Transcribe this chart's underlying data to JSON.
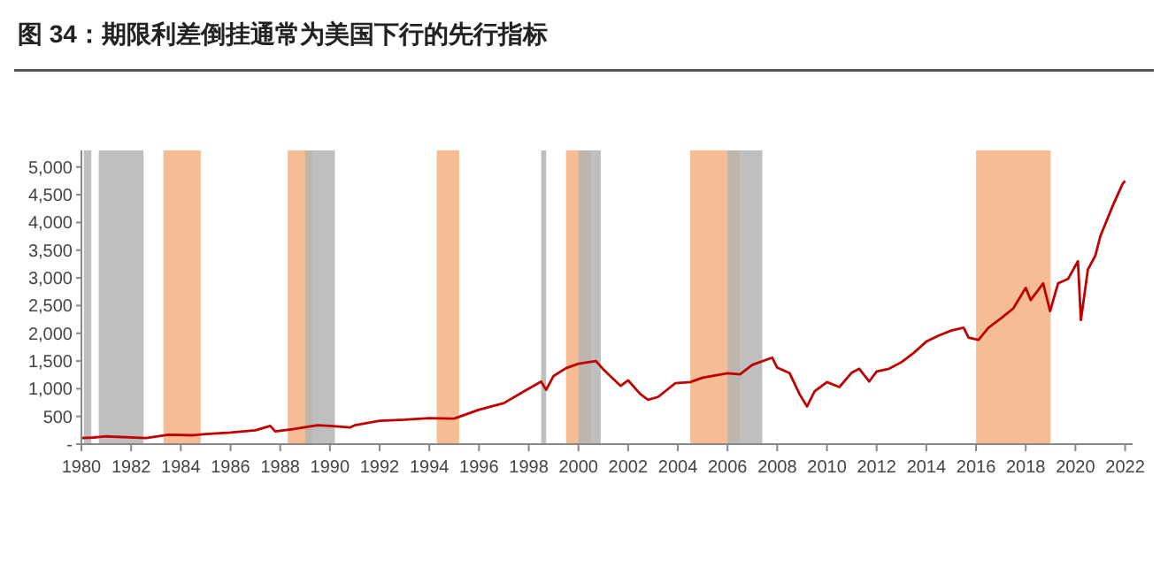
{
  "chart_data": {
    "type": "line",
    "title": "图 34：期限利差倒挂通常为美国下行的先行指标",
    "x": [
      1980,
      1980.5,
      1981,
      1982.6,
      1983.5,
      1984.5,
      1985,
      1986,
      1987,
      1987.6,
      1987.8,
      1988.5,
      1989.5,
      1990,
      1990.8,
      1991,
      1992,
      1993,
      1994,
      1995,
      1996,
      1997,
      1997.8,
      1998.5,
      1998.7,
      1999,
      1999.5,
      2000,
      2000.7,
      2001,
      2001.7,
      2002,
      2002.5,
      2002.8,
      2003.2,
      2003.9,
      2004.5,
      2005,
      2006,
      2006.5,
      2007,
      2007.8,
      2008,
      2008.5,
      2008.9,
      2009.2,
      2009.5,
      2010,
      2010.5,
      2011,
      2011.3,
      2011.7,
      2012,
      2012.5,
      2013,
      2013.5,
      2014,
      2014.5,
      2015,
      2015.5,
      2015.7,
      2016.1,
      2016.5,
      2017,
      2017.5,
      2018,
      2018.2,
      2018.7,
      2018.98,
      2019.3,
      2019.7,
      2020.1,
      2020.22,
      2020.5,
      2020.8,
      2021,
      2021.5,
      2021.9,
      2022
    ],
    "series": [
      {
        "color": "#c00000",
        "values": [
          110,
          120,
          140,
          110,
          170,
          160,
          180,
          210,
          250,
          330,
          230,
          270,
          340,
          330,
          300,
          340,
          420,
          440,
          470,
          460,
          620,
          740,
          950,
          1130,
          980,
          1230,
          1370,
          1450,
          1500,
          1350,
          1050,
          1150,
          900,
          800,
          850,
          1100,
          1120,
          1200,
          1280,
          1260,
          1430,
          1560,
          1380,
          1280,
          900,
          680,
          950,
          1120,
          1030,
          1290,
          1360,
          1130,
          1310,
          1360,
          1480,
          1650,
          1850,
          1960,
          2050,
          2100,
          1920,
          1880,
          2100,
          2270,
          2450,
          2820,
          2600,
          2900,
          2400,
          2900,
          2980,
          3300,
          2240,
          3150,
          3400,
          3750,
          4300,
          4700,
          4750
        ]
      }
    ],
    "xlim": [
      1980,
      2022.3
    ],
    "xticks": [
      1980,
      1982,
      1984,
      1986,
      1988,
      1990,
      1992,
      1994,
      1996,
      1998,
      2000,
      2002,
      2004,
      2006,
      2008,
      2010,
      2012,
      2014,
      2016,
      2018,
      2020,
      2022
    ],
    "ylim": [
      0,
      5300
    ],
    "yticks": [
      {
        "value": 0,
        "label": "-"
      },
      {
        "value": 500,
        "label": "500"
      },
      {
        "value": 1000,
        "label": "1,000"
      },
      {
        "value": 1500,
        "label": "1,500"
      },
      {
        "value": 2000,
        "label": "2,000"
      },
      {
        "value": 2500,
        "label": "2,500"
      },
      {
        "value": 3000,
        "label": "3,000"
      },
      {
        "value": 3500,
        "label": "3,500"
      },
      {
        "value": 4000,
        "label": "4,000"
      },
      {
        "value": 4500,
        "label": "4,500"
      },
      {
        "value": 5000,
        "label": "5,000"
      }
    ],
    "bands": [
      {
        "axis": "x",
        "from": 1980.1,
        "to": 1980.4,
        "color": "#b4b4b4"
      },
      {
        "axis": "x",
        "from": 1980.7,
        "to": 1982.5,
        "color": "#b4b4b4"
      },
      {
        "axis": "x",
        "from": 1983.3,
        "to": 1984.8,
        "color": "#f4b183"
      },
      {
        "axis": "x",
        "from": 1988.3,
        "to": 1989.3,
        "color": "#f4b183"
      },
      {
        "axis": "x",
        "from": 1989.0,
        "to": 1990.2,
        "color": "#b4b4b4"
      },
      {
        "axis": "x",
        "from": 1994.3,
        "to": 1995.2,
        "color": "#f4b183"
      },
      {
        "axis": "x",
        "from": 1998.5,
        "to": 1998.7,
        "color": "#b4b4b4"
      },
      {
        "axis": "x",
        "from": 1999.5,
        "to": 2000.5,
        "color": "#f4b183"
      },
      {
        "axis": "x",
        "from": 2000.0,
        "to": 2000.9,
        "color": "#b4b4b4"
      },
      {
        "axis": "x",
        "from": 2004.5,
        "to": 2006.5,
        "color": "#f4b183"
      },
      {
        "axis": "x",
        "from": 2006.0,
        "to": 2007.4,
        "color": "#b4b4b4"
      },
      {
        "axis": "x",
        "from": 2016.0,
        "to": 2019.0,
        "color": "#f4b183"
      }
    ],
    "grid": false
  }
}
